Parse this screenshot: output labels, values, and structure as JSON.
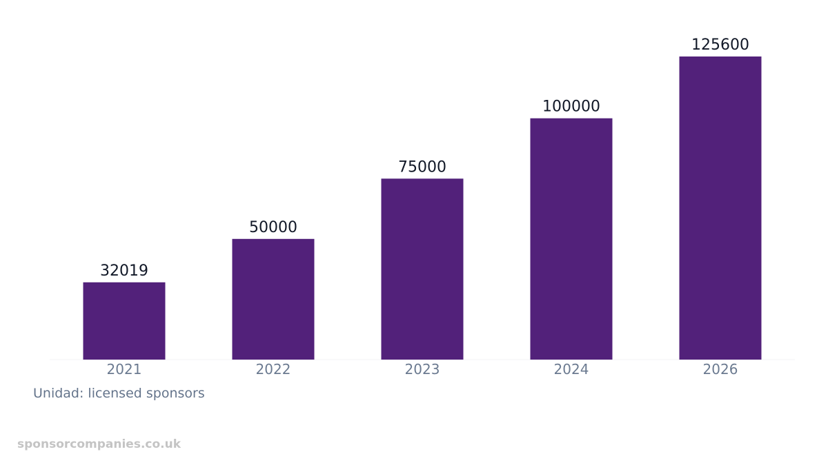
{
  "chart_data": {
    "type": "bar",
    "categories": [
      "2021",
      "2022",
      "2023",
      "2024",
      "2026"
    ],
    "values": [
      32019,
      50000,
      75000,
      100000,
      125600
    ],
    "data_labels": [
      "32019",
      "50000",
      "75000",
      "100000",
      "125600"
    ],
    "title": "",
    "xlabel": "",
    "ylabel": "",
    "ylim": [
      0,
      130000
    ],
    "grid": false,
    "bar_color": "#52217a",
    "unit_note": "Unidad: licensed sponsors"
  },
  "footer": {
    "watermark": "sponsorcompanies.co.uk"
  }
}
